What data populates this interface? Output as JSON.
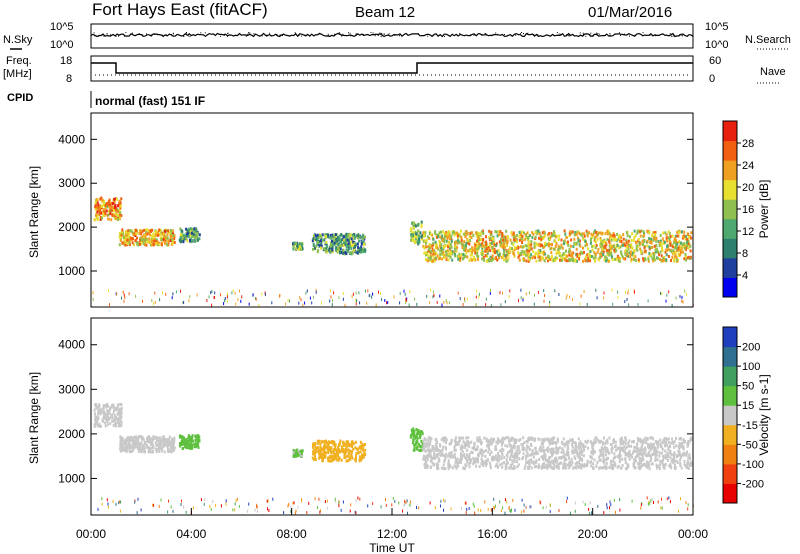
{
  "header": {
    "station": "Fort Hays East (fitACF)",
    "beam": "Beam 12",
    "date": "01/Mar/2016"
  },
  "left_labels": {
    "nsky": "N.Sky",
    "freq_line1": "Freq.",
    "freq_line2": "[MHz]",
    "cpid": "CPID"
  },
  "right_labels": {
    "nsearch": "N.Search",
    "nave": "Nave"
  },
  "noise_panel": {
    "left_ticks": [
      "10^5",
      "10^0"
    ],
    "right_ticks": [
      "10^5",
      "10^0"
    ]
  },
  "freq_panel": {
    "left_ticks": [
      "18",
      "8"
    ],
    "right_ticks": [
      "60",
      "0"
    ]
  },
  "cpid_text": "normal (fast) 151 IF",
  "power_colorbar": {
    "label": "Power [dB]",
    "ticks": [
      "28",
      "24",
      "20",
      "16",
      "12",
      "8",
      "4"
    ],
    "colors": [
      "#0000ee",
      "#1f3f9e",
      "#2f7f6f",
      "#4fa86f",
      "#8fc04f",
      "#e8e030",
      "#f0a020",
      "#f06010",
      "#e82010"
    ]
  },
  "velocity_colorbar": {
    "label": "Velocity [m s-1]",
    "ticks": [
      "200",
      "100",
      "50",
      "15",
      "-15",
      "-50",
      "-100",
      "-200"
    ],
    "colors": [
      "#1f3fbf",
      "#2f6f8f",
      "#3f9f5f",
      "#5fc03f",
      "#c8c8c8",
      "#f0b020",
      "#f08010",
      "#f04010",
      "#e80000"
    ]
  },
  "chart_data": [
    {
      "type": "heatmap",
      "title": "Fort Hays East (fitACF)",
      "xlabel": "",
      "ylabel": "Slant Range [km]",
      "y_ticks": [
        "1000",
        "2000",
        "3000",
        "4000"
      ],
      "ylim": [
        180,
        4600
      ],
      "xlim": [
        "00:00",
        "24:00"
      ],
      "colorbar": "Power [dB]",
      "regions": [
        {
          "x_start": 0.1,
          "x_end": 1.2,
          "range_center": 2450,
          "range_width": 500,
          "value": 24
        },
        {
          "x_start": 1.1,
          "x_end": 3.3,
          "range_center": 1800,
          "range_width": 350,
          "value": 22
        },
        {
          "x_start": 3.5,
          "x_end": 4.3,
          "range_center": 1850,
          "range_width": 300,
          "value": 12
        },
        {
          "x_start": 8.0,
          "x_end": 8.4,
          "range_center": 1600,
          "range_width": 150,
          "value": 12
        },
        {
          "x_start": 8.8,
          "x_end": 10.9,
          "range_center": 1650,
          "range_width": 450,
          "value": 12
        },
        {
          "x_start": 12.7,
          "x_end": 13.2,
          "range_center": 1900,
          "range_width": 500,
          "value": 14
        },
        {
          "x_start": 13.2,
          "x_end": 23.9,
          "range_center": 1600,
          "range_width": 700,
          "value": 20
        }
      ]
    },
    {
      "type": "heatmap",
      "xlabel": "Time UT",
      "ylabel": "Slant Range [km]",
      "x_ticks": [
        "00:00",
        "04:00",
        "08:00",
        "12:00",
        "16:00",
        "20:00",
        "00:00"
      ],
      "y_ticks": [
        "1000",
        "2000",
        "3000",
        "4000"
      ],
      "ylim": [
        180,
        4600
      ],
      "xlim": [
        "00:00",
        "24:00"
      ],
      "colorbar": "Velocity [m s-1]",
      "regions": [
        {
          "x_start": 0.1,
          "x_end": 1.2,
          "range_center": 2450,
          "range_width": 500,
          "value": 0
        },
        {
          "x_start": 1.1,
          "x_end": 3.3,
          "range_center": 1800,
          "range_width": 350,
          "value": -10
        },
        {
          "x_start": 3.5,
          "x_end": 4.3,
          "range_center": 1850,
          "range_width": 300,
          "value": 40
        },
        {
          "x_start": 8.0,
          "x_end": 8.4,
          "range_center": 1600,
          "range_width": 150,
          "value": 30
        },
        {
          "x_start": 8.8,
          "x_end": 10.9,
          "range_center": 1650,
          "range_width": 450,
          "value": -40
        },
        {
          "x_start": 12.7,
          "x_end": 13.2,
          "range_center": 1900,
          "range_width": 500,
          "value": 40
        },
        {
          "x_start": 13.2,
          "x_end": 23.9,
          "range_center": 1600,
          "range_width": 700,
          "value": 0
        }
      ]
    }
  ]
}
